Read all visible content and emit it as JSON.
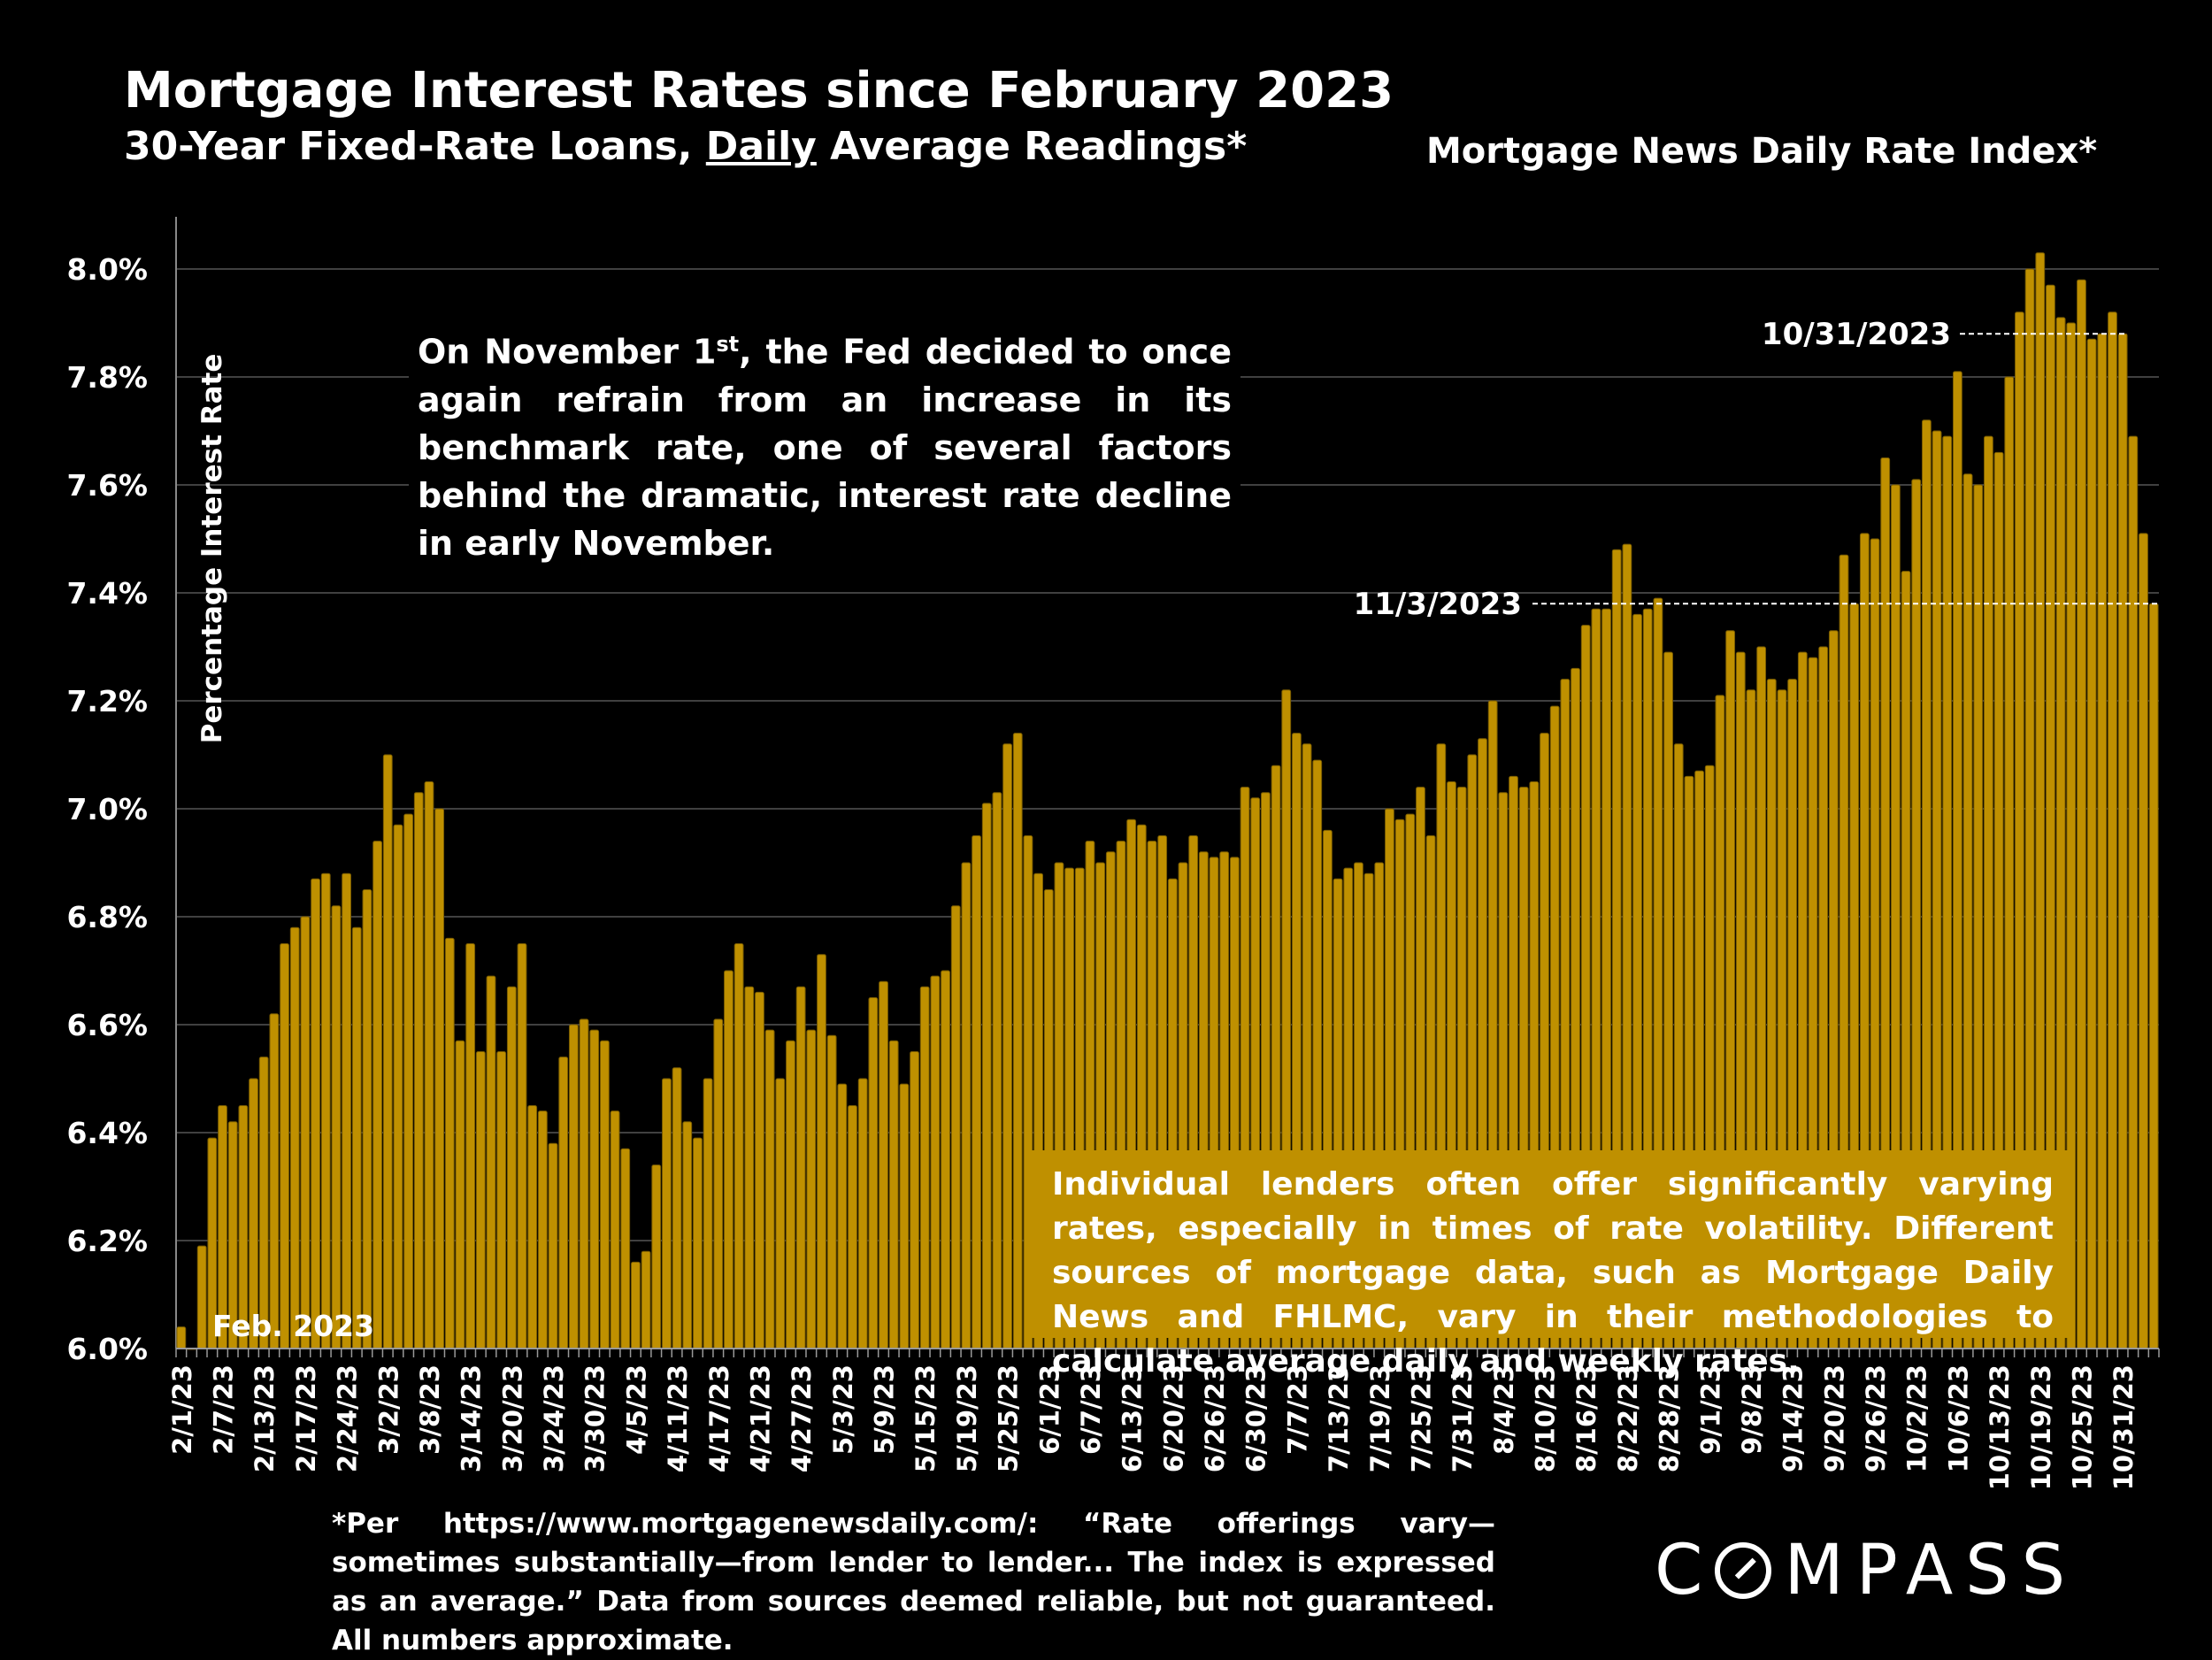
{
  "header": {
    "title": "Mortgage Interest Rates since February 2023",
    "subtitle_pre": "30-Year Fixed-Rate Loans, ",
    "subtitle_underlined": "Daily",
    "subtitle_post": " Average Readings*",
    "source_label": "Mortgage News Daily Rate Index*"
  },
  "notes": {
    "fed_pre": "On November 1",
    "fed_sup": "st",
    "fed_post": ", the Fed decided to once again refrain from an increase in its benchmark rate, one of several factors behind the dramatic, interest rate decline in early November.",
    "lenders": "Individual lenders often offer significantly varying rates, especially in times of rate volatility. Different sources of mortgage data, such as Mortgage Daily News and FHLMC, vary in their methodologies to calculate average daily and weekly rates.",
    "footnote": "*Per https://www.mortgagenewsdaily.com/: “Rate offerings vary—sometimes substantially—from lender to lender... The index is expressed as an average.” Data from sources deemed reliable, but not guaranteed. All numbers approximate."
  },
  "logo": "COMPASS",
  "colors": {
    "bar": "#BF9000",
    "bar_edge": "#7a5c00",
    "background": "#000000",
    "grid": "#555555"
  },
  "chart_data": {
    "type": "bar",
    "title": "Mortgage Interest Rates since February 2023",
    "ylabel": "Percentage Interest  Rate",
    "ylim": [
      6.0,
      8.0
    ],
    "yticks": [
      "6.0%",
      "6.2%",
      "6.4%",
      "6.6%",
      "6.8%",
      "7.0%",
      "7.2%",
      "7.4%",
      "7.6%",
      "7.8%",
      "8.0%"
    ],
    "ytick_values": [
      6.0,
      6.2,
      6.4,
      6.6,
      6.8,
      7.0,
      7.2,
      7.4,
      7.6,
      7.8,
      8.0
    ],
    "grid": true,
    "tick_every": 4,
    "xtick_labels": [
      "2/1/23",
      "2/7/23",
      "2/13/23",
      "2/17/23",
      "2/24/23",
      "3/2/23",
      "3/8/23",
      "3/14/23",
      "3/20/23",
      "3/24/23",
      "3/30/23",
      "4/5/23",
      "4/11/23",
      "4/17/23",
      "4/21/23",
      "4/27/23",
      "5/3/23",
      "5/9/23",
      "5/15/23",
      "5/19/23",
      "5/25/23",
      "6/1/23",
      "6/7/23",
      "6/13/23",
      "6/20/23",
      "6/26/23",
      "6/30/23",
      "7/7/23",
      "7/13/23",
      "7/19/23",
      "7/25/23",
      "7/31/23",
      "8/4/23",
      "8/10/23",
      "8/16/23",
      "8/22/23",
      "8/28/23",
      "9/1/23",
      "9/8/23",
      "9/14/23",
      "9/20/23",
      "9/26/23",
      "10/2/23",
      "10/6/23",
      "10/13/23",
      "10/19/23",
      "10/25/23",
      "10/31/23"
    ],
    "values": [
      6.04,
      6.0,
      6.19,
      6.39,
      6.45,
      6.42,
      6.45,
      6.5,
      6.54,
      6.62,
      6.75,
      6.78,
      6.8,
      6.87,
      6.88,
      6.82,
      6.88,
      6.78,
      6.85,
      6.94,
      7.1,
      6.97,
      6.99,
      7.03,
      7.05,
      7.0,
      6.76,
      6.57,
      6.75,
      6.55,
      6.69,
      6.55,
      6.67,
      6.75,
      6.45,
      6.44,
      6.38,
      6.54,
      6.6,
      6.61,
      6.59,
      6.57,
      6.44,
      6.37,
      6.16,
      6.18,
      6.34,
      6.5,
      6.52,
      6.42,
      6.39,
      6.5,
      6.61,
      6.7,
      6.75,
      6.67,
      6.66,
      6.59,
      6.5,
      6.57,
      6.67,
      6.59,
      6.73,
      6.58,
      6.49,
      6.45,
      6.5,
      6.65,
      6.68,
      6.57,
      6.49,
      6.55,
      6.67,
      6.69,
      6.7,
      6.82,
      6.9,
      6.95,
      7.01,
      7.03,
      7.12,
      7.14,
      6.95,
      6.88,
      6.85,
      6.9,
      6.89,
      6.89,
      6.94,
      6.9,
      6.92,
      6.94,
      6.98,
      6.97,
      6.94,
      6.95,
      6.87,
      6.9,
      6.95,
      6.92,
      6.91,
      6.92,
      6.91,
      7.04,
      7.02,
      7.03,
      7.08,
      7.22,
      7.14,
      7.12,
      7.09,
      6.96,
      6.87,
      6.89,
      6.9,
      6.88,
      6.9,
      7.0,
      6.98,
      6.99,
      7.04,
      6.95,
      7.12,
      7.05,
      7.04,
      7.1,
      7.13,
      7.2,
      7.03,
      7.06,
      7.04,
      7.05,
      7.14,
      7.19,
      7.24,
      7.26,
      7.34,
      7.37,
      7.37,
      7.48,
      7.49,
      7.36,
      7.37,
      7.39,
      7.29,
      7.12,
      7.06,
      7.07,
      7.08,
      7.21,
      7.33,
      7.29,
      7.22,
      7.3,
      7.24,
      7.22,
      7.24,
      7.29,
      7.28,
      7.3,
      7.33,
      7.47,
      7.38,
      7.51,
      7.5,
      7.65,
      7.6,
      7.44,
      7.61,
      7.72,
      7.7,
      7.69,
      7.81,
      7.62,
      7.6,
      7.69,
      7.66,
      7.8,
      7.92,
      8.0,
      8.03,
      7.97,
      7.91,
      7.9,
      7.98,
      7.87,
      7.88,
      7.92,
      7.88,
      7.69,
      7.51,
      7.38
    ],
    "annotations": [
      {
        "label": "10/31/2023",
        "value": 7.88,
        "bar_index": 188
      },
      {
        "label": "11/3/2023",
        "value": 7.38,
        "bar_index": 191
      },
      {
        "label": "Feb. 2023",
        "value": 6.0,
        "bar_index": 0
      }
    ]
  }
}
